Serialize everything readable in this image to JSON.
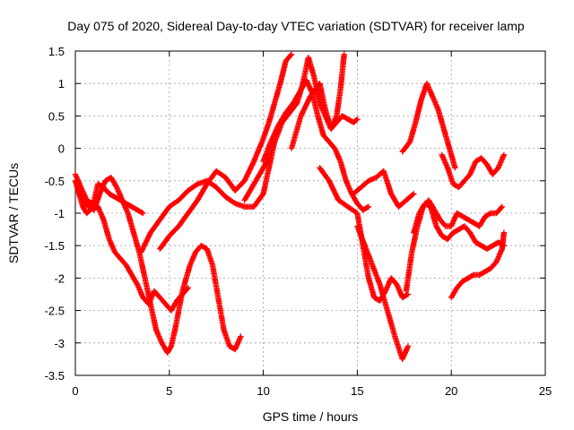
{
  "chart_data": {
    "type": "scatter",
    "title": "Day 075 of 2020, Sidereal Day-to-day VTEC variation (SDTVAR) for receiver lamp",
    "xlabel": "GPS time / hours",
    "ylabel": "SDTVAR / TECUs",
    "xlim": [
      0,
      25
    ],
    "ylim": [
      -3.5,
      1.5
    ],
    "xticks": [
      "0",
      "5",
      "10",
      "15",
      "20",
      "25"
    ],
    "yticks": [
      "1.5",
      "1",
      "0.5",
      "0",
      "-0.5",
      "-1",
      "-1.5",
      "-2",
      "-2.5",
      "-3",
      "-3.5"
    ],
    "grid": true,
    "marker": "+",
    "color": "#ff0000",
    "series": [
      {
        "x": [
          0.0,
          0.2,
          0.4,
          0.6,
          0.8,
          1.0,
          1.2,
          1.5,
          1.8,
          2.1,
          2.4,
          2.7,
          3.0,
          3.3,
          3.6
        ],
        "y": [
          -0.5,
          -0.7,
          -0.9,
          -1.0,
          -0.95,
          -0.8,
          -0.55,
          -0.6,
          -0.7,
          -0.75,
          -0.8,
          -0.85,
          -0.9,
          -0.95,
          -1.0
        ]
      },
      {
        "x": [
          0.0,
          0.3,
          0.6,
          0.9,
          1.2,
          1.5,
          1.8,
          2.1,
          2.4,
          2.7,
          3.0,
          3.3,
          3.6,
          3.9,
          4.2,
          4.5,
          4.8,
          5.1,
          5.4,
          5.7,
          6.0
        ],
        "y": [
          -0.4,
          -0.6,
          -0.8,
          -0.85,
          -0.9,
          -1.1,
          -1.4,
          -1.6,
          -1.7,
          -1.8,
          -1.95,
          -2.1,
          -2.3,
          -2.4,
          -2.2,
          -2.3,
          -2.4,
          -2.5,
          -2.35,
          -2.25,
          -2.15
        ]
      },
      {
        "x": [
          0.1,
          0.4,
          0.7,
          1.0,
          1.3,
          1.6,
          1.9,
          2.2,
          2.5,
          2.8,
          3.1,
          3.4,
          3.7,
          4.0,
          4.3,
          4.6,
          4.9,
          5.1,
          5.3,
          5.5,
          5.7,
          5.9,
          6.1,
          6.4,
          6.7,
          7.0,
          7.3,
          7.6,
          7.9,
          8.2,
          8.5,
          8.8
        ],
        "y": [
          -0.6,
          -0.8,
          -0.9,
          -0.95,
          -0.7,
          -0.5,
          -0.45,
          -0.6,
          -0.8,
          -1.0,
          -1.3,
          -1.6,
          -2.0,
          -2.4,
          -2.8,
          -3.0,
          -3.15,
          -3.05,
          -2.8,
          -2.5,
          -2.2,
          -2.0,
          -1.8,
          -1.6,
          -1.5,
          -1.55,
          -1.8,
          -2.3,
          -2.8,
          -3.05,
          -3.1,
          -2.9
        ]
      },
      {
        "x": [
          3.5,
          4.0,
          4.5,
          5.0,
          5.5,
          6.0,
          6.5,
          7.0,
          7.5,
          8.0,
          8.5,
          9.0,
          9.5,
          10.0,
          10.3,
          10.6
        ],
        "y": [
          -1.6,
          -1.3,
          -1.1,
          -0.9,
          -0.8,
          -0.65,
          -0.55,
          -0.5,
          -0.6,
          -0.75,
          -0.85,
          -0.9,
          -0.9,
          -0.7,
          -0.3,
          0.1
        ]
      },
      {
        "x": [
          4.5,
          5.0,
          5.5,
          6.0,
          6.5,
          7.0,
          7.5,
          8.0,
          8.5,
          9.0,
          9.5,
          10.0,
          10.3,
          10.6,
          10.9,
          11.2,
          11.5
        ],
        "y": [
          -1.55,
          -1.35,
          -1.2,
          -1.0,
          -0.8,
          -0.55,
          -0.35,
          -0.45,
          -0.65,
          -0.5,
          -0.2,
          0.15,
          0.4,
          0.7,
          1.0,
          1.35,
          1.45
        ]
      },
      {
        "x": [
          9.0,
          9.4,
          9.8,
          10.2,
          10.6,
          11.0,
          11.4,
          11.8,
          12.1,
          12.4,
          12.7,
          13.0,
          13.3,
          13.6,
          13.9,
          14.2,
          14.5,
          14.8,
          15.0
        ],
        "y": [
          -0.8,
          -0.6,
          -0.4,
          -0.2,
          0.1,
          0.4,
          0.55,
          0.7,
          1.0,
          1.4,
          1.1,
          0.7,
          0.5,
          0.3,
          0.4,
          0.5,
          0.45,
          0.4,
          0.45
        ]
      },
      {
        "x": [
          10.0,
          10.4,
          10.8,
          11.2,
          11.6,
          12.0,
          12.3,
          12.6,
          12.9,
          13.2,
          13.5,
          13.8,
          14.1,
          14.4,
          14.7,
          15.0,
          15.3,
          15.6
        ],
        "y": [
          -0.2,
          0.1,
          0.35,
          0.55,
          0.7,
          0.9,
          1.05,
          0.85,
          0.5,
          0.2,
          0.1,
          0.0,
          -0.2,
          -0.5,
          -0.7,
          -0.85,
          -0.95,
          -0.9
        ]
      },
      {
        "x": [
          11.5,
          12.0,
          12.5,
          13.0,
          13.3,
          13.6,
          13.9,
          14.1,
          14.3
        ],
        "y": [
          0.0,
          0.5,
          0.8,
          1.0,
          0.6,
          0.3,
          0.5,
          0.9,
          1.45
        ]
      },
      {
        "x": [
          13.0,
          13.5,
          14.0,
          14.5,
          15.0,
          15.3,
          15.6,
          15.9,
          16.2,
          16.5,
          16.8,
          17.1,
          17.4,
          17.7
        ],
        "y": [
          -0.3,
          -0.5,
          -0.8,
          -0.9,
          -1.0,
          -1.5,
          -2.0,
          -2.3,
          -2.35,
          -2.2,
          -2.0,
          -2.1,
          -2.3,
          -2.25
        ]
      },
      {
        "x": [
          15.0,
          15.4,
          15.8,
          16.2,
          16.6,
          17.0,
          17.4,
          17.7
        ],
        "y": [
          -1.2,
          -1.5,
          -1.8,
          -2.1,
          -2.5,
          -2.9,
          -3.25,
          -3.05
        ]
      },
      {
        "x": [
          14.8,
          15.2,
          15.6,
          16.0,
          16.4,
          16.8,
          17.2,
          17.6,
          18.0
        ],
        "y": [
          -0.7,
          -0.6,
          -0.5,
          -0.45,
          -0.35,
          -0.7,
          -0.9,
          -0.8,
          -0.7
        ]
      },
      {
        "x": [
          17.4,
          17.8,
          18.1,
          18.4,
          18.7,
          19.0,
          19.3,
          19.6,
          19.9,
          20.2
        ],
        "y": [
          -0.05,
          0.1,
          0.4,
          0.75,
          1.0,
          0.8,
          0.6,
          0.3,
          0.0,
          -0.3
        ]
      },
      {
        "x": [
          17.6,
          17.9,
          18.2,
          18.5,
          18.8,
          19.1,
          19.4,
          19.7,
          20.0,
          20.3,
          20.6,
          20.9,
          21.2,
          21.5,
          21.8,
          22.1,
          22.4,
          22.7
        ],
        "y": [
          -2.2,
          -1.6,
          -1.2,
          -0.9,
          -0.8,
          -0.95,
          -1.1,
          -1.2,
          -1.2,
          -1.0,
          -1.05,
          -1.1,
          -1.15,
          -1.2,
          -1.05,
          -1.0,
          -1.0,
          -0.9
        ]
      },
      {
        "x": [
          18.0,
          18.3,
          18.6,
          18.9,
          19.2,
          19.5,
          19.8,
          20.1,
          20.4,
          20.7,
          21.0,
          21.3,
          21.6,
          21.9,
          22.2,
          22.5,
          22.8
        ],
        "y": [
          -1.3,
          -1.0,
          -0.85,
          -0.9,
          -1.2,
          -1.35,
          -1.4,
          -1.3,
          -1.25,
          -1.2,
          -1.3,
          -1.45,
          -1.5,
          -1.55,
          -1.5,
          -1.45,
          -1.5
        ]
      },
      {
        "x": [
          19.5,
          19.8,
          20.1,
          20.4,
          20.7,
          21.0,
          21.3,
          21.6,
          21.9,
          22.2,
          22.5,
          22.8
        ],
        "y": [
          -0.1,
          -0.3,
          -0.55,
          -0.6,
          -0.5,
          -0.4,
          -0.2,
          -0.15,
          -0.25,
          -0.4,
          -0.3,
          -0.1
        ]
      },
      {
        "x": [
          20.0,
          20.3,
          20.6,
          20.9,
          21.2,
          21.5,
          21.8,
          22.1,
          22.4,
          22.7,
          22.8
        ],
        "y": [
          -2.3,
          -2.15,
          -2.05,
          -2.0,
          -1.95,
          -1.95,
          -1.9,
          -1.85,
          -1.75,
          -1.55,
          -1.3
        ]
      }
    ]
  }
}
